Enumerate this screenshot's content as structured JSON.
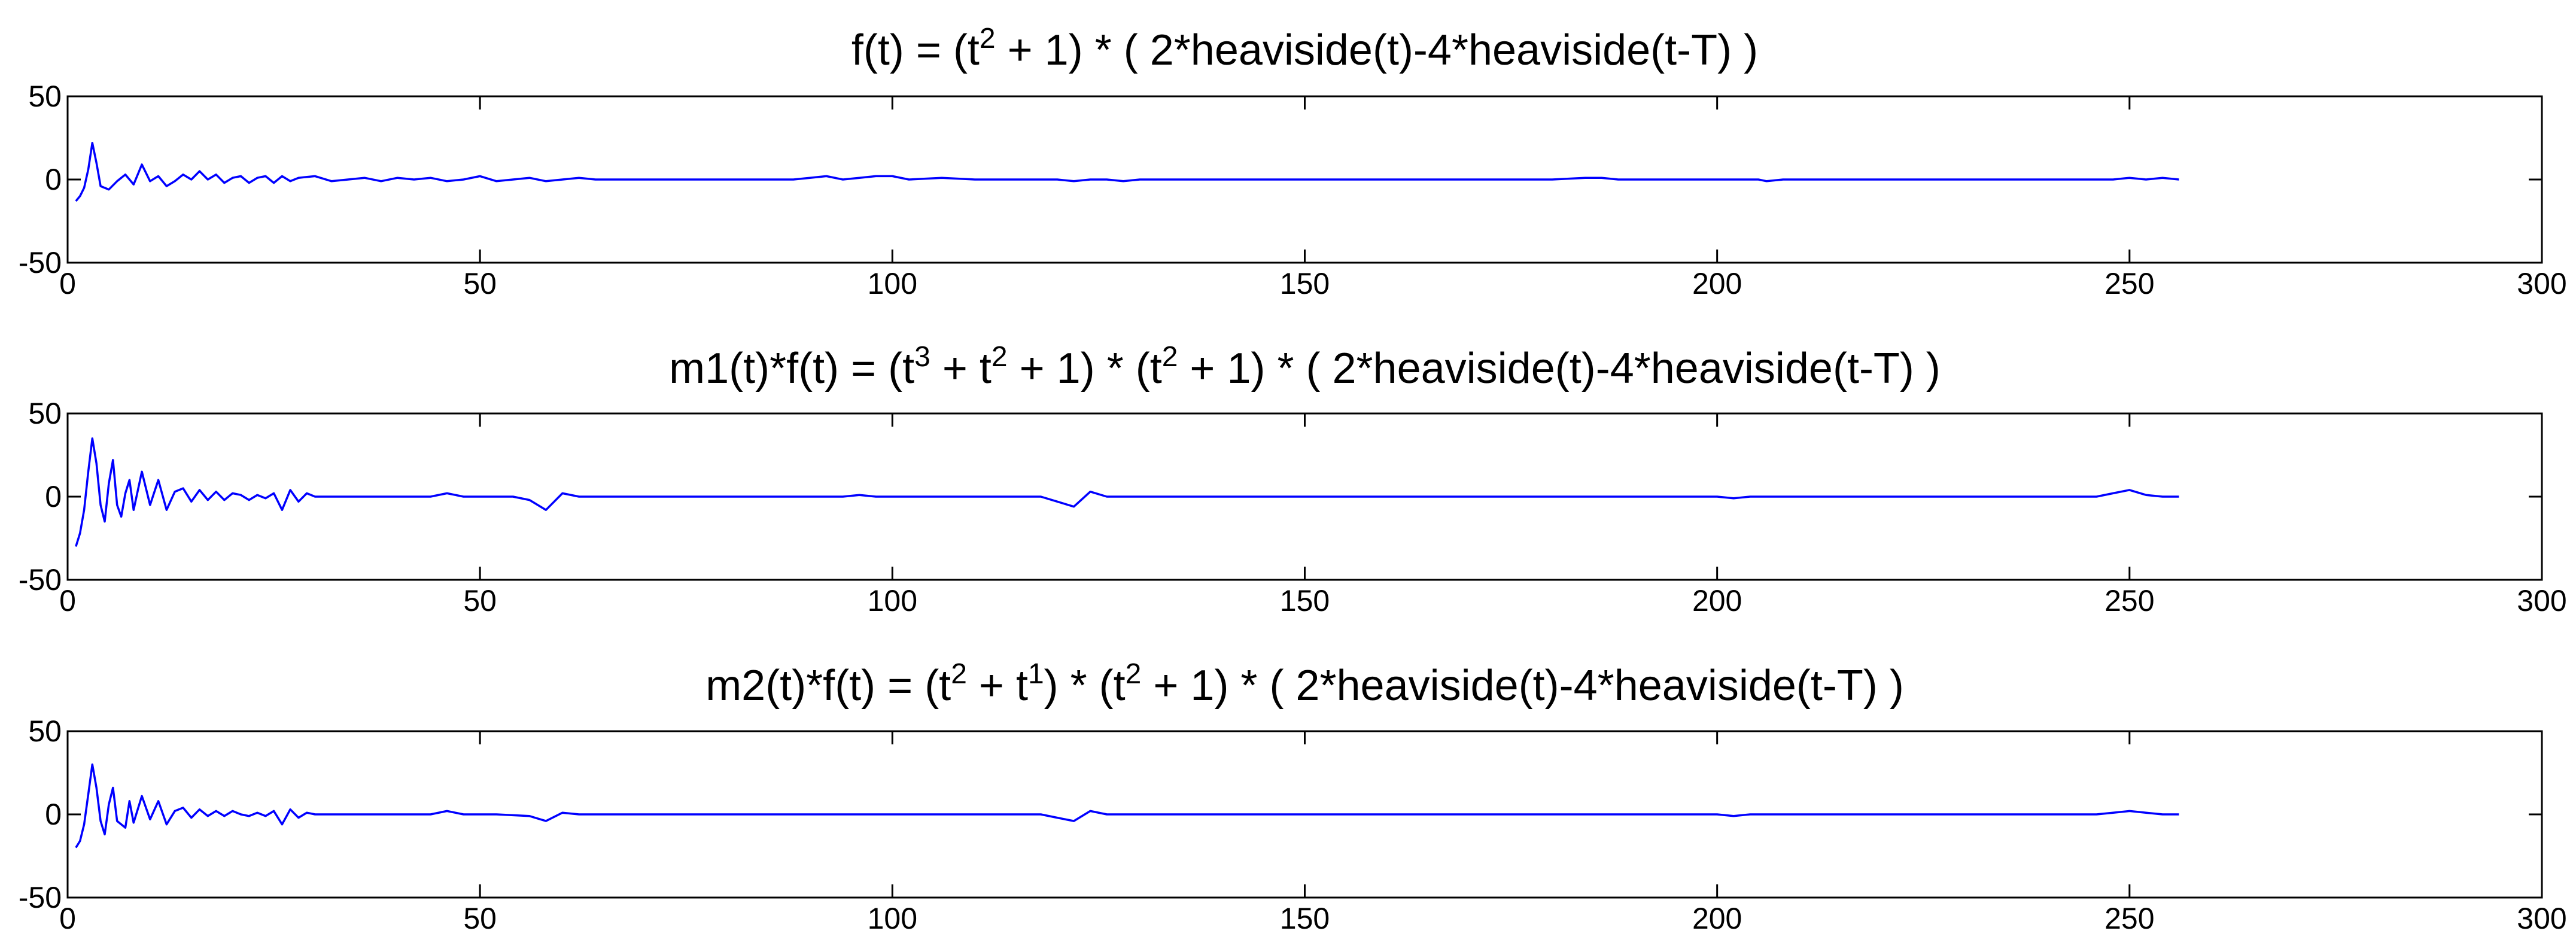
{
  "chart_data": [
    {
      "type": "line",
      "title_parts": [
        {
          "t": "f(t) = (t"
        },
        {
          "t": "2",
          "sup": true
        },
        {
          "t": " + 1) * ( 2*heaviside(t)-4*heaviside(t-T) )"
        }
      ],
      "xlim": [
        0,
        300
      ],
      "ylim": [
        -50,
        50
      ],
      "xticks": [
        "0",
        "50",
        "100",
        "150",
        "200",
        "250",
        "300"
      ],
      "yticks": [
        "-50",
        "0",
        "50"
      ],
      "grid": false,
      "color": "#0000ff",
      "series": [
        {
          "values": [
            [
              1,
              -13
            ],
            [
              1.5,
              -10
            ],
            [
              2,
              -5
            ],
            [
              2.5,
              6
            ],
            [
              3,
              22
            ],
            [
              3.5,
              10
            ],
            [
              4,
              -4
            ],
            [
              5,
              -6
            ],
            [
              6,
              -1
            ],
            [
              7,
              3
            ],
            [
              8,
              -3
            ],
            [
              9,
              9
            ],
            [
              10,
              -1
            ],
            [
              11,
              2
            ],
            [
              12,
              -4
            ],
            [
              13,
              -1
            ],
            [
              14,
              3
            ],
            [
              15,
              0
            ],
            [
              16,
              5
            ],
            [
              17,
              0
            ],
            [
              18,
              3
            ],
            [
              19,
              -2
            ],
            [
              20,
              1
            ],
            [
              21,
              2
            ],
            [
              22,
              -2
            ],
            [
              23,
              1
            ],
            [
              24,
              2
            ],
            [
              25,
              -2
            ],
            [
              26,
              2
            ],
            [
              27,
              -1
            ],
            [
              28,
              1
            ],
            [
              30,
              2
            ],
            [
              32,
              -1
            ],
            [
              34,
              0
            ],
            [
              36,
              1
            ],
            [
              38,
              -1
            ],
            [
              40,
              1
            ],
            [
              42,
              0
            ],
            [
              44,
              1
            ],
            [
              46,
              -1
            ],
            [
              48,
              0
            ],
            [
              50,
              2
            ],
            [
              52,
              -1
            ],
            [
              54,
              0
            ],
            [
              56,
              1
            ],
            [
              58,
              -1
            ],
            [
              60,
              0
            ],
            [
              62,
              1
            ],
            [
              64,
              0
            ],
            [
              70,
              0
            ],
            [
              80,
              0
            ],
            [
              88,
              0
            ],
            [
              90,
              1
            ],
            [
              92,
              2
            ],
            [
              94,
              0
            ],
            [
              96,
              1
            ],
            [
              98,
              2
            ],
            [
              100,
              2
            ],
            [
              102,
              0
            ],
            [
              106,
              1
            ],
            [
              110,
              0
            ],
            [
              115,
              0
            ],
            [
              120,
              0
            ],
            [
              122,
              -1
            ],
            [
              124,
              0
            ],
            [
              126,
              0
            ],
            [
              128,
              -1
            ],
            [
              130,
              0
            ],
            [
              140,
              0
            ],
            [
              150,
              0
            ],
            [
              160,
              0
            ],
            [
              170,
              0
            ],
            [
              180,
              0
            ],
            [
              184,
              1
            ],
            [
              186,
              1
            ],
            [
              188,
              0
            ],
            [
              200,
              0
            ],
            [
              205,
              0
            ],
            [
              206,
              -1
            ],
            [
              208,
              0
            ],
            [
              210,
              0
            ],
            [
              220,
              0
            ],
            [
              230,
              0
            ],
            [
              240,
              0
            ],
            [
              246,
              0
            ],
            [
              248,
              0
            ],
            [
              250,
              1
            ],
            [
              252,
              0
            ],
            [
              254,
              1
            ],
            [
              256,
              0
            ]
          ]
        }
      ]
    },
    {
      "type": "line",
      "title_parts": [
        {
          "t": "m1(t)*f(t) = (t"
        },
        {
          "t": "3",
          "sup": true
        },
        {
          "t": " + t"
        },
        {
          "t": "2",
          "sup": true
        },
        {
          "t": " + 1) * (t"
        },
        {
          "t": "2",
          "sup": true
        },
        {
          "t": " + 1) * ( 2*heaviside(t)-4*heaviside(t-T) )"
        }
      ],
      "xlim": [
        0,
        300
      ],
      "ylim": [
        -50,
        50
      ],
      "xticks": [
        "0",
        "50",
        "100",
        "150",
        "200",
        "250",
        "300"
      ],
      "yticks": [
        "-50",
        "0",
        "50"
      ],
      "grid": false,
      "color": "#0000ff",
      "series": [
        {
          "values": [
            [
              1,
              -30
            ],
            [
              1.5,
              -22
            ],
            [
              2,
              -8
            ],
            [
              2.5,
              15
            ],
            [
              3,
              35
            ],
            [
              3.5,
              20
            ],
            [
              4,
              -5
            ],
            [
              4.5,
              -15
            ],
            [
              5,
              8
            ],
            [
              5.5,
              22
            ],
            [
              6,
              -5
            ],
            [
              6.5,
              -12
            ],
            [
              7,
              2
            ],
            [
              7.5,
              10
            ],
            [
              8,
              -8
            ],
            [
              9,
              15
            ],
            [
              10,
              -5
            ],
            [
              11,
              10
            ],
            [
              12,
              -8
            ],
            [
              13,
              3
            ],
            [
              14,
              5
            ],
            [
              15,
              -3
            ],
            [
              16,
              4
            ],
            [
              17,
              -2
            ],
            [
              18,
              3
            ],
            [
              19,
              -2
            ],
            [
              20,
              2
            ],
            [
              21,
              1
            ],
            [
              22,
              -2
            ],
            [
              23,
              1
            ],
            [
              24,
              -1
            ],
            [
              25,
              2
            ],
            [
              26,
              -8
            ],
            [
              27,
              4
            ],
            [
              28,
              -3
            ],
            [
              29,
              2
            ],
            [
              30,
              0
            ],
            [
              32,
              0
            ],
            [
              34,
              0
            ],
            [
              36,
              0
            ],
            [
              40,
              0
            ],
            [
              44,
              0
            ],
            [
              46,
              2
            ],
            [
              48,
              0
            ],
            [
              50,
              0
            ],
            [
              54,
              0
            ],
            [
              56,
              -2
            ],
            [
              58,
              -8
            ],
            [
              60,
              2
            ],
            [
              62,
              0
            ],
            [
              64,
              0
            ],
            [
              70,
              0
            ],
            [
              80,
              0
            ],
            [
              90,
              0
            ],
            [
              94,
              0
            ],
            [
              96,
              1
            ],
            [
              98,
              0
            ],
            [
              100,
              0
            ],
            [
              110,
              0
            ],
            [
              118,
              0
            ],
            [
              120,
              -3
            ],
            [
              122,
              -6
            ],
            [
              124,
              3
            ],
            [
              126,
              0
            ],
            [
              130,
              0
            ],
            [
              140,
              0
            ],
            [
              150,
              0
            ],
            [
              160,
              0
            ],
            [
              170,
              0
            ],
            [
              180,
              0
            ],
            [
              190,
              0
            ],
            [
              200,
              0
            ],
            [
              202,
              -1
            ],
            [
              204,
              0
            ],
            [
              210,
              0
            ],
            [
              220,
              0
            ],
            [
              230,
              0
            ],
            [
              240,
              0
            ],
            [
              246,
              0
            ],
            [
              248,
              2
            ],
            [
              250,
              4
            ],
            [
              252,
              1
            ],
            [
              254,
              0
            ],
            [
              256,
              0
            ]
          ]
        }
      ]
    },
    {
      "type": "line",
      "title_parts": [
        {
          "t": "m2(t)*f(t) = (t"
        },
        {
          "t": "2",
          "sup": true
        },
        {
          "t": " + t"
        },
        {
          "t": "1",
          "sup": true
        },
        {
          "t": ") * (t"
        },
        {
          "t": "2",
          "sup": true
        },
        {
          "t": " + 1) * ( 2*heaviside(t)-4*heaviside(t-T) )"
        }
      ],
      "xlim": [
        0,
        300
      ],
      "ylim": [
        -50,
        50
      ],
      "xticks": [
        "0",
        "50",
        "100",
        "150",
        "200",
        "250",
        "300"
      ],
      "yticks": [
        "-50",
        "0",
        "50"
      ],
      "grid": false,
      "color": "#0000ff",
      "series": [
        {
          "values": [
            [
              1,
              -20
            ],
            [
              1.5,
              -16
            ],
            [
              2,
              -6
            ],
            [
              2.5,
              12
            ],
            [
              3,
              30
            ],
            [
              3.5,
              16
            ],
            [
              4,
              -4
            ],
            [
              4.5,
              -12
            ],
            [
              5,
              6
            ],
            [
              5.5,
              16
            ],
            [
              6,
              -4
            ],
            [
              7,
              -8
            ],
            [
              7.5,
              8
            ],
            [
              8,
              -5
            ],
            [
              9,
              11
            ],
            [
              10,
              -3
            ],
            [
              11,
              8
            ],
            [
              12,
              -6
            ],
            [
              13,
              2
            ],
            [
              14,
              4
            ],
            [
              15,
              -2
            ],
            [
              16,
              3
            ],
            [
              17,
              -1
            ],
            [
              18,
              2
            ],
            [
              19,
              -1
            ],
            [
              20,
              2
            ],
            [
              21,
              0
            ],
            [
              22,
              -1
            ],
            [
              23,
              1
            ],
            [
              24,
              -1
            ],
            [
              25,
              2
            ],
            [
              26,
              -6
            ],
            [
              27,
              3
            ],
            [
              28,
              -2
            ],
            [
              29,
              1
            ],
            [
              30,
              0
            ],
            [
              34,
              0
            ],
            [
              40,
              0
            ],
            [
              44,
              0
            ],
            [
              46,
              2
            ],
            [
              48,
              0
            ],
            [
              52,
              0
            ],
            [
              56,
              -1
            ],
            [
              58,
              -4
            ],
            [
              60,
              1
            ],
            [
              62,
              0
            ],
            [
              70,
              0
            ],
            [
              80,
              0
            ],
            [
              90,
              0
            ],
            [
              96,
              0
            ],
            [
              100,
              0
            ],
            [
              110,
              0
            ],
            [
              118,
              0
            ],
            [
              120,
              -2
            ],
            [
              122,
              -4
            ],
            [
              124,
              2
            ],
            [
              126,
              0
            ],
            [
              130,
              0
            ],
            [
              140,
              0
            ],
            [
              150,
              0
            ],
            [
              160,
              0
            ],
            [
              170,
              0
            ],
            [
              180,
              0
            ],
            [
              190,
              0
            ],
            [
              200,
              0
            ],
            [
              202,
              -1
            ],
            [
              204,
              0
            ],
            [
              210,
              0
            ],
            [
              220,
              0
            ],
            [
              230,
              0
            ],
            [
              240,
              0
            ],
            [
              246,
              0
            ],
            [
              248,
              1
            ],
            [
              250,
              2
            ],
            [
              252,
              1
            ],
            [
              254,
              0
            ],
            [
              256,
              0
            ]
          ]
        }
      ]
    }
  ]
}
